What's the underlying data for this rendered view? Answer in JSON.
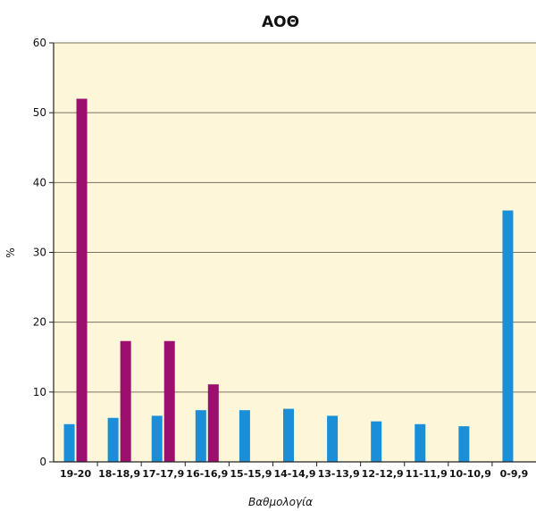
{
  "chart_data": {
    "type": "bar",
    "title": "ΑΟΘ",
    "xlabel": "Βαθμολογία",
    "ylabel": "%",
    "ylim": [
      0,
      60
    ],
    "yticks": [
      0,
      10,
      20,
      30,
      40,
      50,
      60
    ],
    "grid": true,
    "categories": [
      "19-20",
      "18-18,9",
      "17-17,9",
      "16-16,9",
      "15-15,9",
      "14-14,9",
      "13-13,9",
      "12-12,9",
      "11-11,9",
      "10-10,9",
      "0-9,9"
    ],
    "series": [
      {
        "values": [
          5.4,
          6.3,
          6.6,
          7.4,
          7.4,
          7.6,
          6.6,
          5.8,
          5.4,
          5.1,
          36.0
        ],
        "color": "#1a8fd8"
      },
      {
        "values": [
          52.0,
          17.3,
          17.3,
          11.1,
          null,
          null,
          null,
          null,
          null,
          null,
          null
        ],
        "color": "#9b0f6f"
      }
    ],
    "plot_background": "#fdf6d8",
    "grid_color": "#7a7260"
  }
}
